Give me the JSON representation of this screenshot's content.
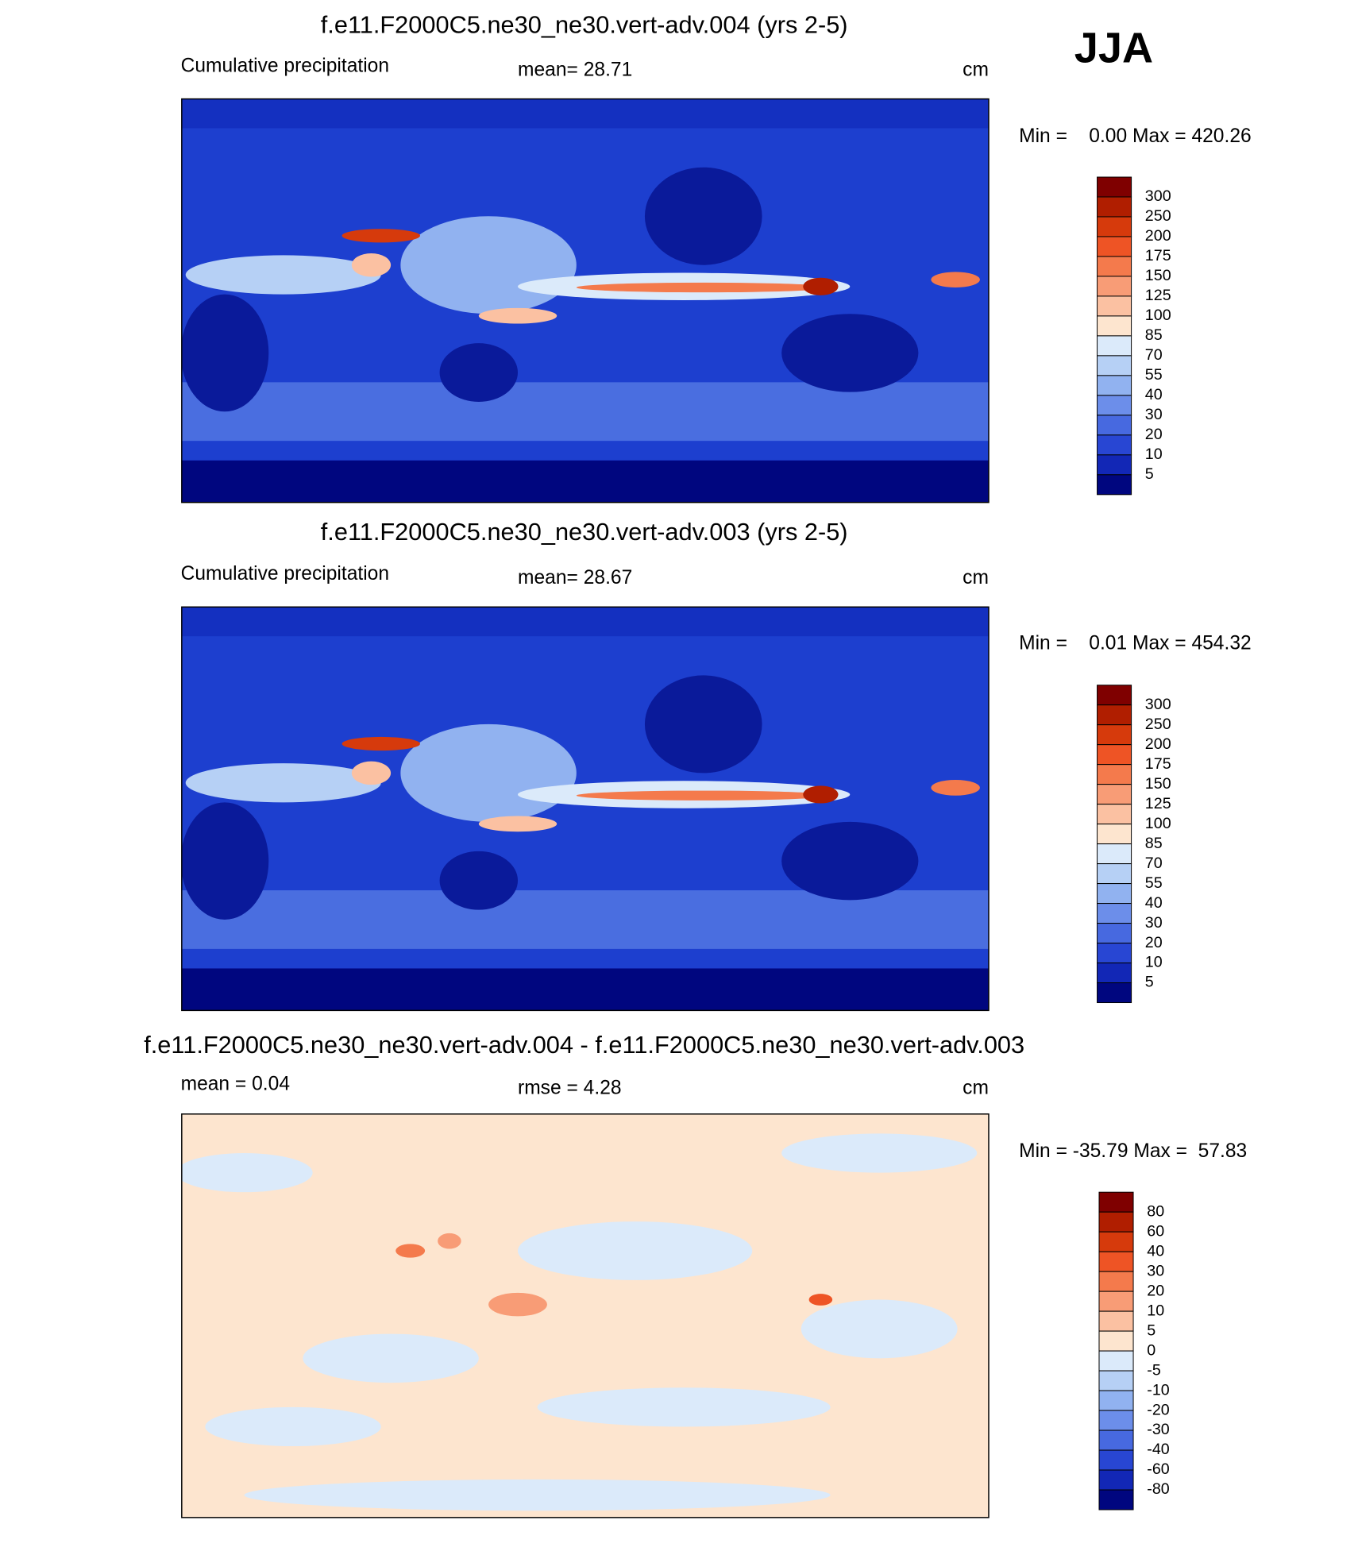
{
  "header": {
    "season": "JJA"
  },
  "panels": [
    {
      "title": "f.e11.F2000C5.ne30_ne30.vert-adv.004 (yrs 2-5)",
      "left_label": "Cumulative precipitation",
      "center_label": "mean=  28.71",
      "units": "cm",
      "range_label": "Min =    0.00 Max = 420.26",
      "colorbar": {
        "colors": [
          "#7f0000",
          "#b01e00",
          "#d63a0c",
          "#ee5425",
          "#f47a4c",
          "#f89c76",
          "#fbc1a2",
          "#fde5cf",
          "#dbeafa",
          "#b6d0f5",
          "#91b2f0",
          "#6c8eea",
          "#4769e0",
          "#2846d3",
          "#1227b6",
          "#00067f"
        ],
        "labels": [
          "300",
          "250",
          "200",
          "175",
          "150",
          "125",
          "100",
          "85",
          "70",
          "55",
          "40",
          "30",
          "20",
          "10",
          "5"
        ]
      }
    },
    {
      "title": "f.e11.F2000C5.ne30_ne30.vert-adv.003 (yrs 2-5)",
      "left_label": "Cumulative precipitation",
      "center_label": "mean=  28.67",
      "units": "cm",
      "range_label": "Min =    0.01 Max = 454.32",
      "colorbar": {
        "colors": [
          "#7f0000",
          "#b01e00",
          "#d63a0c",
          "#ee5425",
          "#f47a4c",
          "#f89c76",
          "#fbc1a2",
          "#fde5cf",
          "#dbeafa",
          "#b6d0f5",
          "#91b2f0",
          "#6c8eea",
          "#4769e0",
          "#2846d3",
          "#1227b6",
          "#00067f"
        ],
        "labels": [
          "300",
          "250",
          "200",
          "175",
          "150",
          "125",
          "100",
          "85",
          "70",
          "55",
          "40",
          "30",
          "20",
          "10",
          "5"
        ]
      }
    },
    {
      "title": "f.e11.F2000C5.ne30_ne30.vert-adv.004 - f.e11.F2000C5.ne30_ne30.vert-adv.003",
      "left_label": "mean =    0.04",
      "center_label": "rmse =    4.28",
      "units": "cm",
      "range_label": "Min = -35.79 Max =  57.83",
      "colorbar": {
        "colors": [
          "#7f0000",
          "#b01e00",
          "#d63a0c",
          "#ee5425",
          "#f47a4c",
          "#f89c76",
          "#fbc1a2",
          "#fde5cf",
          "#dbeafa",
          "#b6d0f5",
          "#91b2f0",
          "#6c8eea",
          "#4769e0",
          "#2846d3",
          "#1227b6",
          "#00067f"
        ],
        "labels": [
          "80",
          "60",
          "40",
          "30",
          "20",
          "10",
          "5",
          "0",
          "-5",
          "-10",
          "-20",
          "-30",
          "-40",
          "-60",
          "-80"
        ]
      }
    }
  ]
}
